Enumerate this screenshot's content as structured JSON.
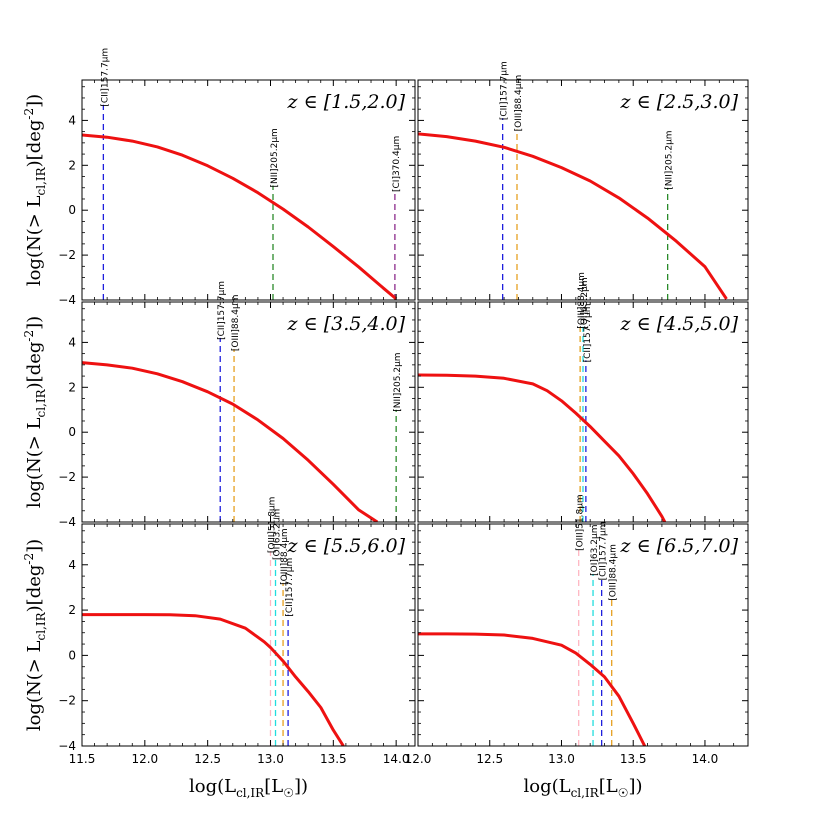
{
  "chart_data": {
    "type": "line",
    "xlabel": "log(L_{cl,IR}[L_☉])",
    "ylabel": "log(N(> L_{cl,IR})[deg^{-2}])",
    "ylim": [
      -4,
      5.8
    ],
    "y_ticks": [
      "−4",
      "−2",
      "0",
      "2",
      "4"
    ],
    "y_tick_values": [
      -4,
      -2,
      0,
      2,
      4
    ],
    "left_xlim": [
      11.5,
      14.15
    ],
    "right_xlim": [
      12.0,
      14.3
    ],
    "left_x_ticks": [
      "11.5",
      "12.0",
      "12.5",
      "13.0",
      "13.5",
      "14.0"
    ],
    "left_x_tick_values": [
      11.5,
      12.0,
      12.5,
      13.0,
      13.5,
      14.0
    ],
    "right_x_ticks": [
      "12.0",
      "12.5",
      "13.0",
      "13.5",
      "14.0"
    ],
    "right_x_tick_values": [
      12.0,
      12.5,
      13.0,
      13.5,
      14.0
    ],
    "curve_color": "#ee1111",
    "panels": [
      {
        "title": "z ∈ [1.5,2.0]",
        "column": "left",
        "series": [
          {
            "x": [
              11.5,
              11.7,
              11.9,
              12.1,
              12.3,
              12.5,
              12.7,
              12.9,
              13.1,
              13.3,
              13.5,
              13.7,
              13.9,
              14.0
            ],
            "y": [
              3.35,
              3.25,
              3.08,
              2.82,
              2.45,
              1.98,
              1.42,
              0.78,
              0.05,
              -0.75,
              -1.62,
              -2.52,
              -3.48,
              -3.95
            ]
          }
        ],
        "lines": [
          {
            "x": 11.67,
            "top": 4.7,
            "label": "[CII]157.7μm",
            "color": "#1f1fdd"
          },
          {
            "x": 13.02,
            "top": 1.1,
            "label": "[NII]205.2μm",
            "color": "#2a8a2a"
          },
          {
            "x": 13.99,
            "top": 0.9,
            "label": "[CI]370.4μm",
            "color": "#8b2a8b"
          }
        ]
      },
      {
        "title": "z ∈ [2.5,3.0]",
        "column": "right",
        "series": [
          {
            "x": [
              12.0,
              12.2,
              12.4,
              12.6,
              12.8,
              13.0,
              13.2,
              13.4,
              13.6,
              13.8,
              14.0,
              14.15
            ],
            "y": [
              3.4,
              3.28,
              3.08,
              2.8,
              2.4,
              1.9,
              1.3,
              0.55,
              -0.35,
              -1.38,
              -2.52,
              -3.95
            ]
          }
        ],
        "lines": [
          {
            "x": 12.59,
            "top": 4.1,
            "label": "[CII]157.7μm",
            "color": "#1f1fdd"
          },
          {
            "x": 12.69,
            "top": 3.6,
            "label": "[OIII]88.4μm",
            "color": "#e6a020"
          },
          {
            "x": 13.74,
            "top": 1.0,
            "label": "[NII]205.2μm",
            "color": "#2a8a2a"
          }
        ]
      },
      {
        "title": "z ∈ [3.5,4.0]",
        "column": "left",
        "series": [
          {
            "x": [
              11.5,
              11.7,
              11.9,
              12.1,
              12.3,
              12.5,
              12.7,
              12.9,
              13.1,
              13.3,
              13.5,
              13.7,
              13.85
            ],
            "y": [
              3.1,
              3.0,
              2.85,
              2.6,
              2.25,
              1.8,
              1.25,
              0.55,
              -0.28,
              -1.25,
              -2.32,
              -3.45,
              -4.0
            ]
          }
        ],
        "lines": [
          {
            "x": 12.6,
            "top": 4.2,
            "label": "[CII]157.7μm",
            "color": "#1f1fdd"
          },
          {
            "x": 12.71,
            "top": 3.7,
            "label": "[OIII]88.4μm",
            "color": "#e6a020"
          },
          {
            "x": 14.0,
            "top": 1.0,
            "label": "[NII]205.2μm",
            "color": "#2a8a2a"
          }
        ]
      },
      {
        "title": "z ∈ [4.5,5.0]",
        "column": "right",
        "series": [
          {
            "x": [
              12.0,
              12.2,
              12.4,
              12.6,
              12.8,
              12.9,
              13.0,
              13.1,
              13.2,
              13.3,
              13.4,
              13.5,
              13.6,
              13.7,
              13.72
            ],
            "y": [
              2.55,
              2.54,
              2.5,
              2.4,
              2.15,
              1.85,
              1.4,
              0.85,
              0.25,
              -0.4,
              -1.05,
              -1.85,
              -2.75,
              -3.75,
              -4.0
            ]
          }
        ],
        "lines": [
          {
            "x": 13.13,
            "top": 4.7,
            "label": "[OIII]88.4μm",
            "color": "#e6a020"
          },
          {
            "x": 13.15,
            "top": 4.7,
            "label": "[OI]63.2μm",
            "color": "#22dddd"
          },
          {
            "x": 13.17,
            "top": 3.2,
            "label": "[CII]157.7μm",
            "color": "#1f1fdd"
          }
        ]
      },
      {
        "title": "z ∈ [5.5,6.0]",
        "column": "left",
        "series": [
          {
            "x": [
              11.5,
              11.8,
              12.0,
              12.2,
              12.4,
              12.6,
              12.8,
              12.95,
              13.0,
              13.1,
              13.2,
              13.3,
              13.4,
              13.5,
              13.58
            ],
            "y": [
              1.8,
              1.8,
              1.8,
              1.79,
              1.75,
              1.6,
              1.2,
              0.6,
              0.35,
              -0.25,
              -0.95,
              -1.6,
              -2.3,
              -3.3,
              -4.0
            ]
          }
        ],
        "lines": [
          {
            "x": 13.0,
            "top": 4.6,
            "label": "[OIII]51.8μm",
            "color": "#ffb6c1"
          },
          {
            "x": 13.04,
            "top": 4.3,
            "label": "[OI]63.2μm",
            "color": "#22dddd"
          },
          {
            "x": 13.1,
            "top": 3.2,
            "label": "[OIII]88.4μm",
            "color": "#e6a020"
          },
          {
            "x": 13.14,
            "top": 1.8,
            "label": "[CII]157.7μm",
            "color": "#1f1fdd"
          }
        ]
      },
      {
        "title": "z ∈ [6.5,7.0]",
        "column": "right",
        "series": [
          {
            "x": [
              12.0,
              12.2,
              12.4,
              12.6,
              12.8,
              13.0,
              13.1,
              13.2,
              13.3,
              13.4,
              13.5,
              13.58
            ],
            "y": [
              0.95,
              0.95,
              0.94,
              0.9,
              0.75,
              0.45,
              0.1,
              -0.4,
              -0.95,
              -1.8,
              -3.0,
              -4.0
            ]
          }
        ],
        "lines": [
          {
            "x": 13.12,
            "top": 4.7,
            "label": "[OIII]51.8μm",
            "color": "#ffb6c1"
          },
          {
            "x": 13.22,
            "top": 3.6,
            "label": "[OI]63.2μm",
            "color": "#22dddd"
          },
          {
            "x": 13.28,
            "top": 3.4,
            "label": "[CII]157.7μm",
            "color": "#1f1fdd"
          },
          {
            "x": 13.35,
            "top": 2.5,
            "label": "[OIII]88.4μm",
            "color": "#e6a020"
          }
        ]
      }
    ]
  }
}
